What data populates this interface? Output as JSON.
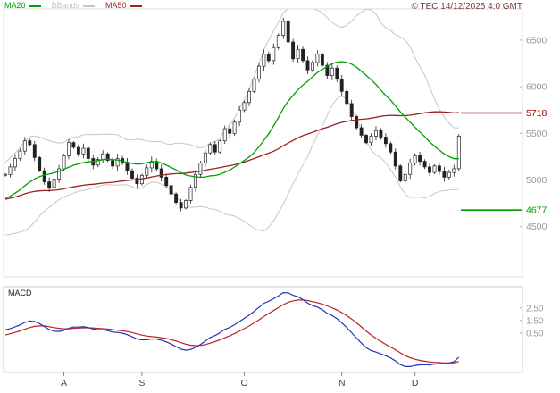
{
  "header": {
    "legend": [
      {
        "label": "MA20",
        "color": "#00a000"
      },
      {
        "label": "BBands",
        "color": "#bdbdbd"
      },
      {
        "label": "MA50",
        "color": "#9b2222"
      }
    ],
    "copyright": "© TEC 14/12/2025 4:0 GMT"
  },
  "colors": {
    "ma20": "#00a000",
    "ma50": "#9b2222",
    "bbands": "#c6c6c6",
    "candle_outline": "#222222",
    "candle_up_fill": "#ffffff",
    "candle_down_fill": "#222222",
    "macd_line": "#2233bb",
    "macd_signal": "#bb2222",
    "copyright_text": "#7a3333",
    "axis_text": "#999999",
    "month_text": "#444444"
  },
  "chart_data": {
    "type": "candlestick",
    "title": "",
    "price_panel": {
      "y_ticks": [
        6500,
        6000,
        5500,
        5000,
        4500
      ],
      "y_range": [
        3980,
        6815
      ],
      "levels": [
        {
          "name": "resistance-level",
          "value": 5718,
          "label": "5718",
          "color": "#aa0000"
        },
        {
          "name": "support-level",
          "value": 4677,
          "label": "4677",
          "color": "#009900"
        }
      ]
    },
    "x_axis": {
      "month_labels": [
        "A",
        "S",
        "O",
        "N",
        "D"
      ],
      "month_indices": [
        12,
        28,
        49,
        69,
        84
      ]
    },
    "indicators": {
      "ma20_period": 20,
      "ma50_period": 50,
      "bbands": {
        "period": 20,
        "stddev": 2
      },
      "macd": {
        "fast": 12,
        "slow": 26,
        "signal": 9
      }
    },
    "prehistory_closes": [
      4950,
      4900,
      4850,
      4800,
      4760,
      4720,
      4690,
      4660,
      4640,
      4620,
      4600,
      4580,
      4570,
      4560,
      4580,
      4610,
      4650,
      4700,
      4750,
      4800,
      4850,
      4900,
      4950,
      5000,
      5050,
      5080,
      5060,
      5050
    ],
    "closes": [
      5060,
      5140,
      5230,
      5310,
      5420,
      5380,
      5240,
      5100,
      4980,
      4920,
      5010,
      5120,
      5260,
      5400,
      5350,
      5280,
      5340,
      5230,
      5160,
      5220,
      5280,
      5210,
      5150,
      5230,
      5190,
      5100,
      5020,
      4960,
      5050,
      5130,
      5200,
      5120,
      5030,
      4940,
      4850,
      4760,
      4700,
      4780,
      4920,
      5060,
      5180,
      5290,
      5380,
      5300,
      5420,
      5550,
      5500,
      5620,
      5750,
      5830,
      5950,
      6080,
      6220,
      6350,
      6280,
      6420,
      6550,
      6700,
      6480,
      6300,
      6400,
      6280,
      6180,
      6260,
      6350,
      6230,
      6120,
      6200,
      6080,
      5950,
      5820,
      5680,
      5560,
      5480,
      5400,
      5470,
      5530,
      5460,
      5390,
      5300,
      5150,
      4990,
      5060,
      5180,
      5260,
      5200,
      5140,
      5080,
      5150,
      5090,
      5030,
      5080,
      5120,
      5470
    ],
    "macd_panel": {
      "label": "MACD",
      "y_ticks": [
        2.5,
        1.5,
        0.5
      ],
      "y_tick_labels": [
        "2.50",
        "1.50",
        "0.50"
      ],
      "scale_divisor": 100
    }
  }
}
